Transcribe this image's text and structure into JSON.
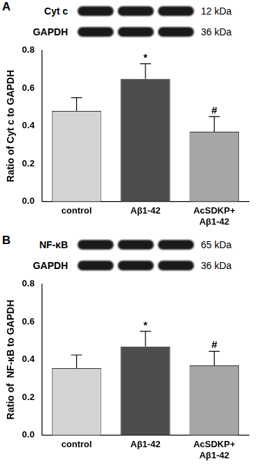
{
  "chart_data": [
    {
      "type": "bar",
      "panel": "A",
      "blot": [
        {
          "protein": "Cyt c",
          "size": "12 kDa"
        },
        {
          "protein": "GAPDH",
          "size": "36 kDa"
        }
      ],
      "y_label": "Ratio of Cyt c to GAPDH",
      "categories": [
        "control",
        "Aβ1-42",
        "AcSDKP+Aβ1-42"
      ],
      "values": [
        0.48,
        0.65,
        0.37
      ],
      "errors": [
        0.07,
        0.08,
        0.08
      ],
      "significance": [
        null,
        "*",
        "#"
      ],
      "colors": [
        "#d4d4d4",
        "#4d4d4d",
        "#a6a6a6"
      ],
      "ylim": [
        0,
        0.8
      ],
      "yticks": [
        {
          "value": 0,
          "label": "0.0"
        },
        0.2,
        0.4,
        0.6,
        0.8
      ],
      "grid": false
    },
    {
      "type": "bar",
      "panel": "B",
      "blot": [
        {
          "protein": "NF-κB",
          "size": "65 kDa"
        },
        {
          "protein": "GAPDH",
          "size": "36 kDa"
        }
      ],
      "y_label": "Ratio of  NF-κB to GAPDH",
      "categories": [
        "control",
        "Aβ1-42",
        "AcSDKP+Aβ1-42"
      ],
      "values": [
        0.355,
        0.47,
        0.37
      ],
      "errors": [
        0.07,
        0.08,
        0.075
      ],
      "significance": [
        null,
        "*",
        "#"
      ],
      "colors": [
        "#d4d4d4",
        "#4d4d4d",
        "#a6a6a6"
      ],
      "ylim": [
        0,
        0.8
      ],
      "yticks": [
        {
          "value": 0,
          "label": "0.0"
        },
        0.2,
        0.4,
        0.6,
        0.8
      ],
      "grid": false
    }
  ]
}
